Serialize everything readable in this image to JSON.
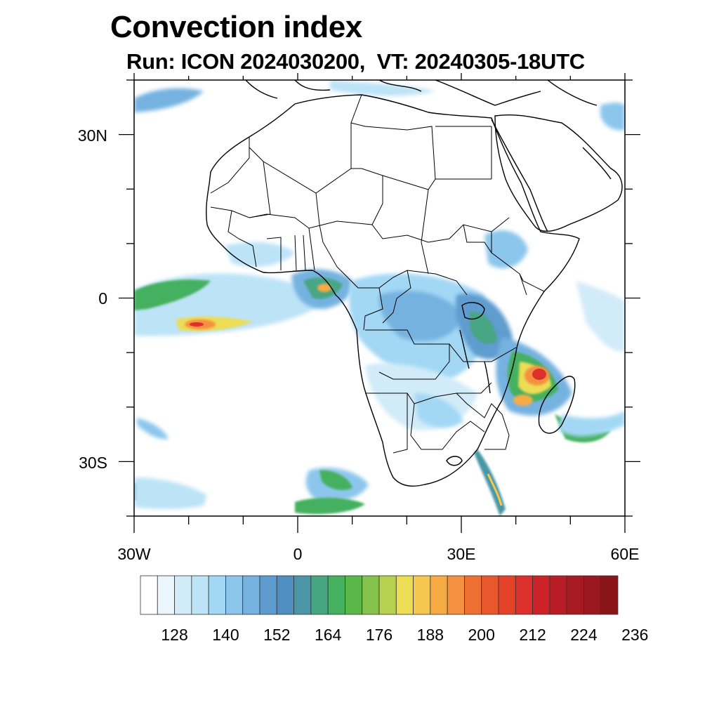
{
  "title": "Convection index",
  "subtitle": "Run: ICON 2024030200,  VT: 20240305-18UTC",
  "map": {
    "region": "Africa",
    "lon_range": [
      -30,
      60
    ],
    "lat_range": [
      -40,
      40
    ],
    "lat_ticks": [
      {
        "value": 30,
        "label": "30N"
      },
      {
        "value": 0,
        "label": "0"
      },
      {
        "value": -30,
        "label": "30S"
      }
    ],
    "lon_ticks": [
      {
        "value": -30,
        "label": "30W"
      },
      {
        "value": 0,
        "label": "0"
      },
      {
        "value": 30,
        "label": "30E"
      },
      {
        "value": 60,
        "label": "60E"
      }
    ],
    "minor_tick_step": 10
  },
  "colorbar": {
    "labels": [
      "128",
      "140",
      "152",
      "164",
      "176",
      "188",
      "200",
      "212",
      "224",
      "236"
    ],
    "colors": [
      "#ffffff",
      "#eaf5fc",
      "#d2ebf9",
      "#bde3f7",
      "#a3d8f5",
      "#8cc6ec",
      "#75b2e0",
      "#5e9ccf",
      "#4f8fc1",
      "#4a96a6",
      "#46a684",
      "#45b05f",
      "#5ab84a",
      "#86c34c",
      "#b6d04f",
      "#ecdd55",
      "#f6c74e",
      "#f7ab45",
      "#f59040",
      "#ee7032",
      "#e9572c",
      "#e44329",
      "#dd2f2b",
      "#cd2227",
      "#b81d25",
      "#a81a22",
      "#9a1820",
      "#8a1518"
    ]
  },
  "field_colors": {
    "light": "#bde3f7",
    "mid": "#75b2e0",
    "teal": "#4a96a6",
    "green": "#45b05f",
    "yellow": "#ecdd55",
    "orange": "#f59040",
    "red": "#dd2f2b"
  }
}
